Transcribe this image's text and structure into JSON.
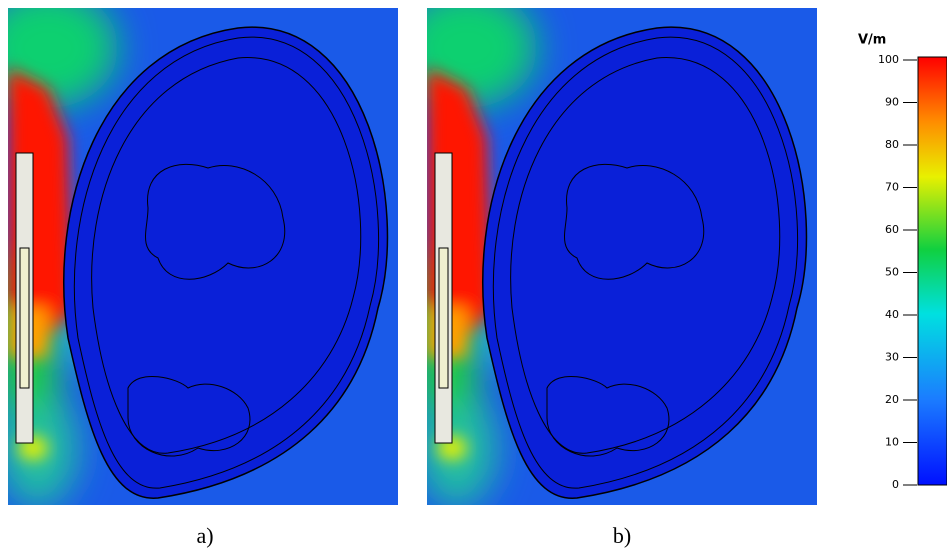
{
  "panels": [
    {
      "label": "a)"
    },
    {
      "label": "b)"
    }
  ],
  "colorbar": {
    "unit": "V/m",
    "lim": [
      0,
      100
    ],
    "ticks": [
      0,
      10,
      20,
      30,
      40,
      50,
      60,
      70,
      80,
      90,
      100
    ]
  }
}
